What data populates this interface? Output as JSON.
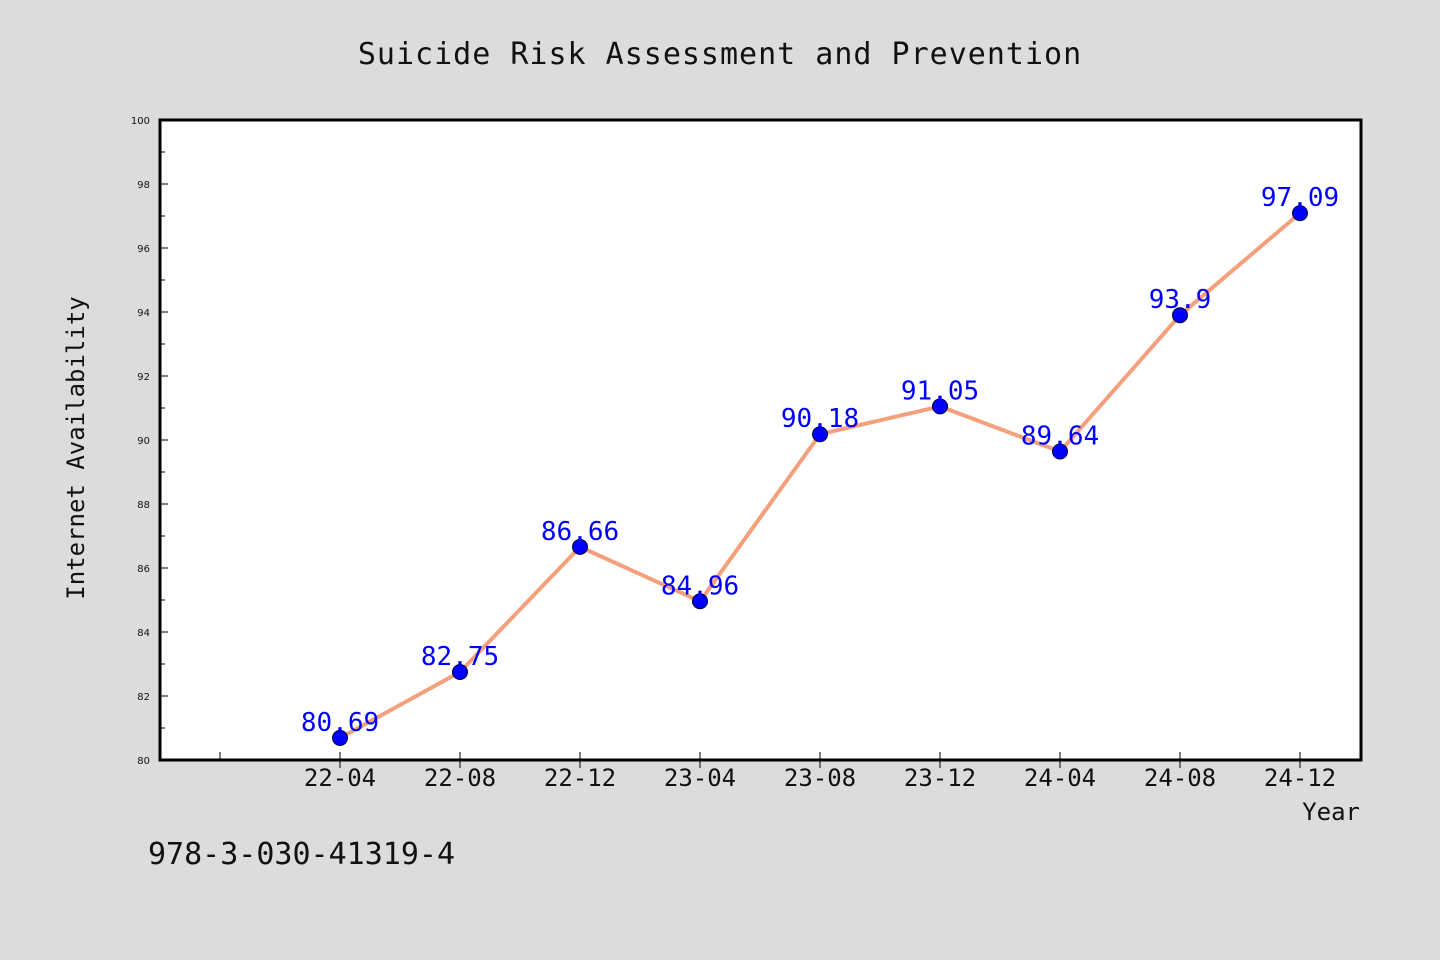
{
  "chart_data": {
    "type": "line",
    "title": "Suicide Risk Assessment and Prevention",
    "xlabel": "Year",
    "ylabel": "Internet Availability",
    "categories": [
      "22-04",
      "22-08",
      "22-12",
      "23-04",
      "23-08",
      "23-12",
      "24-04",
      "24-08",
      "24-12"
    ],
    "series": [
      {
        "values": [
          80.69,
          82.75,
          86.66,
          84.96,
          90.18,
          91.05,
          89.64,
          93.9,
          97.09
        ],
        "data_labels": [
          "80.69",
          "82.75",
          "86.66",
          "84.96",
          "90.18",
          "91.05",
          "89.64",
          "93.9",
          "97.09"
        ]
      }
    ],
    "ylim": [
      80,
      100
    ],
    "y_ticks": [
      "80",
      "82",
      "84",
      "86",
      "88",
      "90",
      "92",
      "94",
      "96",
      "98",
      "100"
    ],
    "grid": false,
    "legend": "none"
  },
  "footer": {
    "code": "978-3-030-41319-4"
  },
  "colors": {
    "background": "#dcdcdc",
    "plot_background": "#ffffff",
    "line": "#f4a07c",
    "marker": "#0000ff",
    "data_label": "#0000ff"
  }
}
